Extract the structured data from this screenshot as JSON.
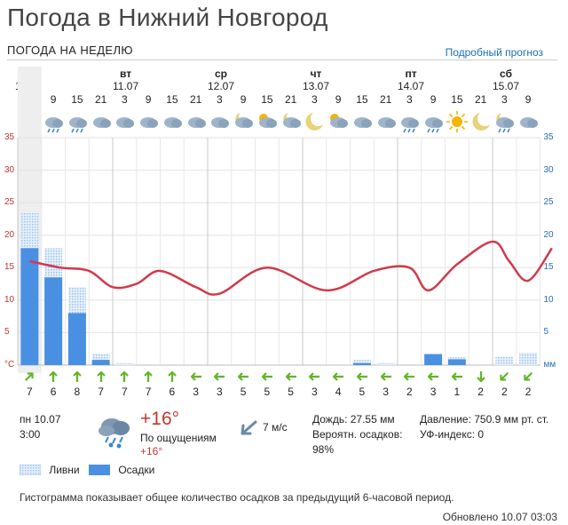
{
  "header": {
    "title": "Погода в Нижний Новгород",
    "subtitle": "ПОГОДА НА НЕДЕЛЮ",
    "detail_link": "Подробный прогноз"
  },
  "days": [
    {
      "name": "пн",
      "date": "10.07"
    },
    {
      "name": "вт",
      "date": "11.07"
    },
    {
      "name": "ср",
      "date": "12.07"
    },
    {
      "name": "чт",
      "date": "13.07"
    },
    {
      "name": "пт",
      "date": "14.07"
    },
    {
      "name": "сб",
      "date": "15.07"
    }
  ],
  "hours": [
    "3",
    "9",
    "15",
    "21",
    "3",
    "9",
    "15",
    "21",
    "3",
    "9",
    "15",
    "21",
    "3",
    "9",
    "15",
    "21",
    "3",
    "9",
    "15",
    "21",
    "3",
    "9"
  ],
  "weather_icons": [
    "heavy-rain-icon",
    "rain-icon",
    "rain-icon",
    "cloud-icon",
    "cloud-icon",
    "cloud-icon",
    "cloud-icon",
    "cloud-icon",
    "cloud-icon",
    "moon-cloud-icon",
    "sun-cloud-icon",
    "moon-cloud-icon",
    "moon-icon",
    "sun-cloud-icon",
    "cloud-icon",
    "cloud-icon",
    "rain-icon",
    "rain-icon",
    "sun-icon",
    "moon-icon",
    "moon-rain-icon",
    "cloud-icon"
  ],
  "chart_data": {
    "type": "line",
    "y_left_ticks": [
      "35",
      "30",
      "25",
      "20",
      "15",
      "10",
      "5",
      "°C"
    ],
    "y_right_ticks": [
      "35",
      "30",
      "25",
      "20",
      "15",
      "10",
      "5",
      "мм"
    ],
    "ylim": [
      0,
      35
    ],
    "temperature": [
      16,
      15,
      14.5,
      12,
      12.5,
      14.5,
      12,
      11,
      15,
      11.5,
      14.5,
      15,
      11.5,
      15.5,
      19,
      16,
      13,
      18
    ],
    "temperature_x": [
      0,
      1.3,
      2.5,
      3.5,
      4.5,
      5.5,
      7,
      8,
      10,
      12.5,
      14.5,
      16,
      16.8,
      18,
      19.5,
      20.2,
      21,
      22
    ],
    "precip_total": [
      18,
      13.5,
      8,
      0.8,
      0,
      0,
      0,
      0,
      0,
      0,
      0,
      0,
      0,
      0,
      0.3,
      0,
      0,
      1.7,
      0.9,
      0,
      0,
      0
    ],
    "precip_showers": [
      23.5,
      18,
      12,
      1.8,
      0.3,
      0,
      0,
      0,
      0,
      0,
      0,
      0,
      0,
      0,
      0.8,
      0.3,
      0,
      0,
      1.2,
      0,
      1.3,
      1.9
    ]
  },
  "wind": [
    {
      "dir": "sw",
      "speed": "7"
    },
    {
      "dir": "s",
      "speed": "6"
    },
    {
      "dir": "s",
      "speed": "8"
    },
    {
      "dir": "s",
      "speed": "7"
    },
    {
      "dir": "s",
      "speed": "7"
    },
    {
      "dir": "s",
      "speed": "7"
    },
    {
      "dir": "s",
      "speed": "6"
    },
    {
      "dir": "e",
      "speed": "3"
    },
    {
      "dir": "e",
      "speed": "3"
    },
    {
      "dir": "e",
      "speed": "5"
    },
    {
      "dir": "e",
      "speed": "5"
    },
    {
      "dir": "e",
      "speed": "5"
    },
    {
      "dir": "e",
      "speed": "3"
    },
    {
      "dir": "e",
      "speed": "4"
    },
    {
      "dir": "e",
      "speed": "5"
    },
    {
      "dir": "e",
      "speed": "3"
    },
    {
      "dir": "e",
      "speed": "2"
    },
    {
      "dir": "e",
      "speed": "3"
    },
    {
      "dir": "e",
      "speed": "1"
    },
    {
      "dir": "n",
      "speed": "2"
    },
    {
      "dir": "ne",
      "speed": "2"
    },
    {
      "dir": "ne",
      "speed": "2"
    }
  ],
  "current": {
    "date": "пн 10.07",
    "time": "3:00",
    "temp": "+16°",
    "feels_label": "По ощущениям",
    "feels_value": "+16°",
    "wind": "7 м/с",
    "rain": "Дождь: 27.55 мм",
    "precip_prob_label": "Вероятн. осадков:",
    "precip_prob": "98%",
    "pressure": "Давление: 750.9 мм рт. ст.",
    "uv": "УФ-индекс: 0"
  },
  "legend": {
    "showers": "Ливни",
    "precip": "Осадки"
  },
  "note": "Гистограмма показывает общее количество осадков за предыдущий 6-часовой период.",
  "updated": "Обновлено 10.07 03:03",
  "colors": {
    "temp_line": "#d03a4a",
    "bar": "#4a90e2",
    "bar_showers": "#9cc3ec",
    "wind_arrow": "#62b52a",
    "axis_left": "#b33",
    "axis_right": "#2a6cb8"
  }
}
